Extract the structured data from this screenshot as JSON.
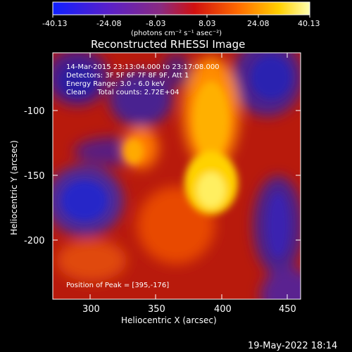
{
  "colorbar": {
    "ticks": [
      "-40.13",
      "-24.08",
      "-8.03",
      "8.03",
      "24.08",
      "40.13"
    ],
    "units_label": "(photons cm⁻² s⁻¹ asec⁻²)"
  },
  "title": "Reconstructed RHESSI Image",
  "info": {
    "time": "14-Mar-2015 23:13:04.000 to 23:17:08.000",
    "detectors": "Detectors: 3F 5F 6F 7F 8F 9F, Att 1",
    "energy": "Energy Range: 3.0 - 6.0 keV",
    "clean": "Clean     Total counts: 2.72E+04",
    "peak": "Position of Peak = [395,-176]"
  },
  "axes": {
    "xlabel": "Heliocentric X (arcsec)",
    "ylabel": "Heliocentric Y (arcsec)",
    "xticks": [
      "300",
      "350",
      "400",
      "450"
    ],
    "yticks": [
      "-100",
      "-150",
      "-200"
    ]
  },
  "footer": {
    "date": "19-May-2022 18:14"
  }
}
